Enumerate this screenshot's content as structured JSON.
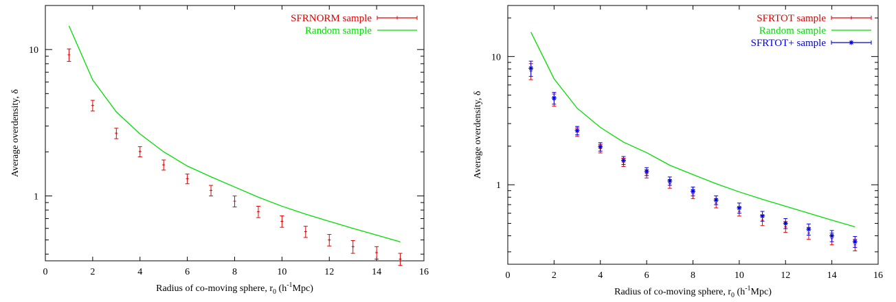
{
  "chart_data": [
    {
      "type": "scatter",
      "xlabel": "Radius of co-moving sphere, r",
      "xlabel_sub": "0",
      "xlabel_unit_pre": " (h",
      "xlabel_unit_sup": "-1",
      "xlabel_unit_post": "Mpc)",
      "ylabel": "Average overdensity, δ",
      "xlim": [
        0,
        16
      ],
      "ylim": [
        0.36,
        20
      ],
      "yscale": "log",
      "grid": false,
      "legend_position": "top-right",
      "x_ticks": [
        "0",
        "2",
        "4",
        "6",
        "8",
        "10",
        "12",
        "14",
        "16"
      ],
      "y_ticks": [
        {
          "value": 1,
          "label": "1"
        },
        {
          "value": 10,
          "label": "10"
        }
      ],
      "series": [
        {
          "name": "SFRNORM sample",
          "style": "errorbar",
          "color": "#e00000",
          "x": [
            1,
            2,
            3,
            4,
            5,
            6,
            7,
            8,
            9,
            10,
            11,
            12,
            13,
            14,
            15
          ],
          "y": [
            9.2,
            4.15,
            2.68,
            2.01,
            1.63,
            1.31,
            1.09,
            0.92,
            0.78,
            0.67,
            0.57,
            0.5,
            0.45,
            0.41,
            0.37
          ],
          "err": [
            0.9,
            0.35,
            0.22,
            0.16,
            0.13,
            0.1,
            0.09,
            0.08,
            0.07,
            0.06,
            0.05,
            0.045,
            0.045,
            0.04,
            0.035
          ]
        },
        {
          "name": "Random sample",
          "style": "line",
          "color": "#00dd00",
          "x": [
            1,
            2,
            3,
            4,
            5,
            6,
            7,
            8,
            9,
            10,
            11,
            12,
            13,
            14,
            15
          ],
          "y": [
            14.5,
            6.2,
            3.75,
            2.65,
            2.0,
            1.6,
            1.35,
            1.15,
            0.98,
            0.85,
            0.75,
            0.67,
            0.6,
            0.54,
            0.485
          ]
        }
      ]
    },
    {
      "type": "scatter",
      "xlabel": "Radius of co-moving sphere, r",
      "xlabel_sub": "0",
      "xlabel_unit_pre": " (h",
      "xlabel_unit_sup": "-1",
      "xlabel_unit_post": "Mpc)",
      "ylabel": "Average overdensity, δ",
      "xlim": [
        0,
        16
      ],
      "ylim": [
        0.24,
        25
      ],
      "yscale": "log",
      "grid": false,
      "legend_position": "top-right",
      "x_ticks": [
        "0",
        "2",
        "4",
        "6",
        "8",
        "10",
        "12",
        "14",
        "16"
      ],
      "y_ticks": [
        {
          "value": 1,
          "label": "1"
        },
        {
          "value": 10,
          "label": "10"
        }
      ],
      "series": [
        {
          "name": "SFRTOT sample",
          "style": "errorbar",
          "color": "#e00000",
          "x": [
            1,
            2,
            3,
            4,
            5,
            6,
            7,
            8,
            9,
            10,
            11,
            12,
            13,
            14,
            15
          ],
          "y": [
            7.7,
            4.6,
            2.58,
            1.92,
            1.5,
            1.22,
            1.02,
            0.85,
            0.72,
            0.62,
            0.53,
            0.47,
            0.42,
            0.38,
            0.34
          ],
          "err": [
            1.1,
            0.5,
            0.2,
            0.15,
            0.11,
            0.09,
            0.08,
            0.07,
            0.06,
            0.05,
            0.05,
            0.045,
            0.045,
            0.04,
            0.035
          ]
        },
        {
          "name": "Random sample",
          "style": "line",
          "color": "#00dd00",
          "x": [
            1,
            2,
            3,
            4,
            5,
            6,
            7,
            8,
            9,
            10,
            11,
            12,
            13,
            14,
            15
          ],
          "y": [
            15.5,
            6.7,
            3.95,
            2.8,
            2.15,
            1.78,
            1.42,
            1.2,
            1.02,
            0.88,
            0.77,
            0.68,
            0.6,
            0.53,
            0.47
          ]
        },
        {
          "name": "SFRTOT+ sample",
          "style": "errorbar-star",
          "color": "#0000dd",
          "x": [
            1,
            2,
            3,
            4,
            5,
            6,
            7,
            8,
            9,
            10,
            11,
            12,
            13,
            14,
            15
          ],
          "y": [
            8.1,
            4.75,
            2.65,
            1.98,
            1.55,
            1.27,
            1.07,
            0.89,
            0.76,
            0.66,
            0.57,
            0.5,
            0.45,
            0.4,
            0.36
          ],
          "err": [
            1.1,
            0.5,
            0.2,
            0.15,
            0.11,
            0.09,
            0.08,
            0.07,
            0.06,
            0.06,
            0.05,
            0.045,
            0.045,
            0.04,
            0.035
          ]
        }
      ]
    }
  ]
}
